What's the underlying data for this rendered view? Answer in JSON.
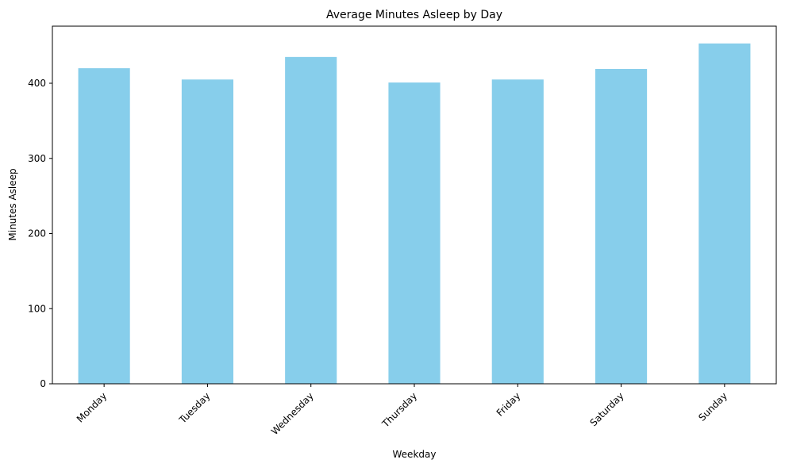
{
  "chart_data": {
    "type": "bar",
    "title": "Average Minutes Asleep by Day",
    "xlabel": "Weekday",
    "ylabel": "Minutes Asleep",
    "categories": [
      "Monday",
      "Tuesday",
      "Wednesday",
      "Thursday",
      "Friday",
      "Saturday",
      "Sunday"
    ],
    "values": [
      420,
      405,
      435,
      401,
      405,
      419,
      453
    ],
    "ylim": [
      0,
      476
    ],
    "yticks": [
      0,
      100,
      200,
      300,
      400
    ],
    "grid": false,
    "legend": "none",
    "bar_color": "#87ceeb",
    "axis_color": "#000000"
  }
}
